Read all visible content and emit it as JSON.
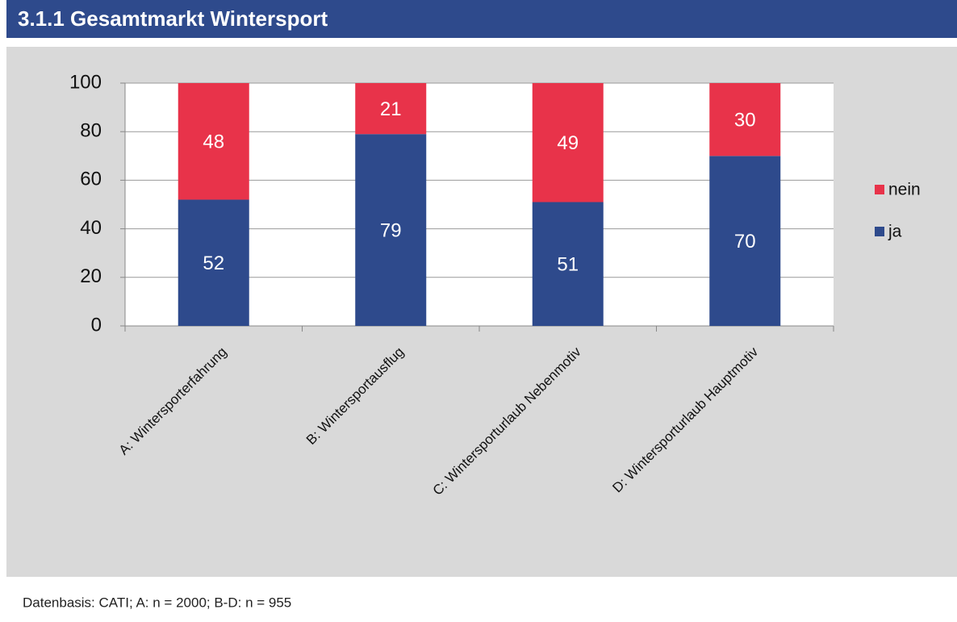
{
  "chart_data": {
    "type": "stacked_bar",
    "title": "3.1.1 Gesamtmarkt Wintersport",
    "categories": [
      "A: Wintersporterfahrung",
      "B: Wintersportausflug",
      "C: Wintersporturlaub Nebenmotiv",
      "D: Wintersporturlaub Hauptmotiv"
    ],
    "series": [
      {
        "name": "ja",
        "color": "#2e4a8c",
        "values": [
          52,
          79,
          51,
          70
        ]
      },
      {
        "name": "nein",
        "color": "#e8334a",
        "values": [
          48,
          21,
          49,
          30
        ]
      }
    ],
    "ylim": [
      0,
      100
    ],
    "yticks": [
      0,
      20,
      40,
      60,
      80,
      100
    ],
    "grid": true,
    "legend": "right",
    "footnote": "Datenbasis: CATI; A: n = 2000; B-D: n = 955"
  }
}
